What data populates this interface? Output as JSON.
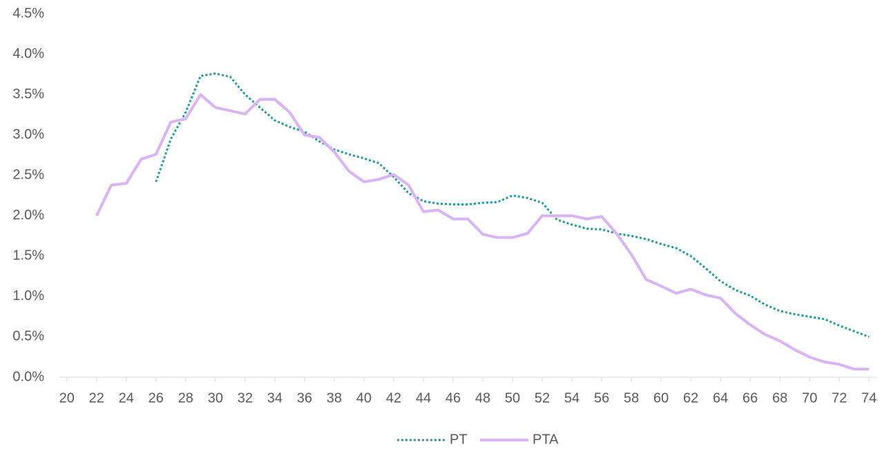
{
  "chart_data": {
    "type": "line",
    "x": [
      20,
      21,
      22,
      23,
      24,
      25,
      26,
      27,
      28,
      29,
      30,
      31,
      32,
      33,
      34,
      35,
      36,
      37,
      38,
      39,
      40,
      41,
      42,
      43,
      44,
      45,
      46,
      47,
      48,
      49,
      50,
      51,
      52,
      53,
      54,
      55,
      56,
      57,
      58,
      59,
      60,
      61,
      62,
      63,
      64,
      65,
      66,
      67,
      68,
      69,
      70,
      71,
      72,
      73,
      74
    ],
    "xlim": [
      19.5,
      74.5
    ],
    "xticks": [
      20,
      22,
      24,
      26,
      28,
      30,
      32,
      34,
      36,
      38,
      40,
      42,
      44,
      46,
      48,
      50,
      52,
      54,
      56,
      58,
      60,
      62,
      64,
      66,
      68,
      70,
      72,
      74
    ],
    "ylim": [
      0,
      4.5
    ],
    "yticks": [
      {
        "value": 0,
        "label": "0.0%"
      },
      {
        "value": 0.5,
        "label": "0.5%"
      },
      {
        "value": 1,
        "label": "1.0%"
      },
      {
        "value": 1.5,
        "label": "1.5%"
      },
      {
        "value": 2,
        "label": "2.0%"
      },
      {
        "value": 2.5,
        "label": "2.5%"
      },
      {
        "value": 3,
        "label": "3.0%"
      },
      {
        "value": 3.5,
        "label": "3.5%"
      },
      {
        "value": 4,
        "label": "4.0%"
      },
      {
        "value": 4.5,
        "label": "4.5%"
      }
    ],
    "grid": false,
    "legend": "bottom",
    "series": [
      {
        "name": "PT",
        "color": "#1a9ba3",
        "style": "dotted",
        "values": [
          null,
          null,
          null,
          null,
          null,
          null,
          2.42,
          2.95,
          3.28,
          3.73,
          3.76,
          3.72,
          3.5,
          3.34,
          3.18,
          3.1,
          3.04,
          2.92,
          2.82,
          2.76,
          2.71,
          2.65,
          2.48,
          2.28,
          2.18,
          2.15,
          2.14,
          2.14,
          2.16,
          2.17,
          2.25,
          2.22,
          2.16,
          1.95,
          1.89,
          1.84,
          1.83,
          1.78,
          1.75,
          1.71,
          1.65,
          1.6,
          1.5,
          1.35,
          1.19,
          1.08,
          1.01,
          0.9,
          0.82,
          0.78,
          0.75,
          0.72,
          0.64,
          0.57,
          0.5
        ]
      },
      {
        "name": "PTA",
        "color": "#d9b3f5",
        "style": "solid",
        "values": [
          null,
          null,
          2.0,
          2.38,
          2.4,
          2.7,
          2.76,
          3.16,
          3.2,
          3.5,
          3.34,
          3.3,
          3.26,
          3.44,
          3.44,
          3.28,
          3.0,
          2.97,
          2.79,
          2.55,
          2.42,
          2.45,
          2.51,
          2.38,
          2.05,
          2.07,
          1.96,
          1.96,
          1.77,
          1.73,
          1.73,
          1.78,
          2.0,
          2.0,
          2.0,
          1.96,
          1.99,
          1.78,
          1.52,
          1.21,
          1.13,
          1.04,
          1.09,
          1.02,
          0.98,
          0.79,
          0.65,
          0.53,
          0.45,
          0.34,
          0.25,
          0.19,
          0.16,
          0.1,
          0.1
        ]
      }
    ]
  }
}
